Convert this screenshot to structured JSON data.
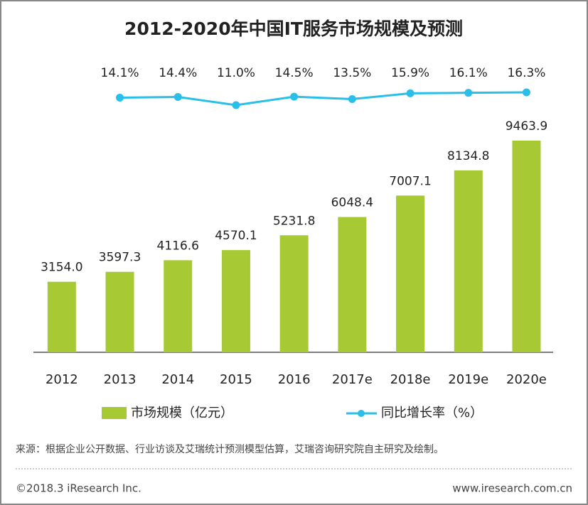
{
  "chart_data": {
    "type": "bar_line",
    "title": "2012-2020年中国IT服务市场规模及预测",
    "categories": [
      "2012",
      "2013",
      "2014",
      "2015",
      "2016",
      "2017e",
      "2018e",
      "2019e",
      "2020e"
    ],
    "series": [
      {
        "name": "市场规模（亿元）",
        "type": "bar",
        "color": "#a6c934",
        "values": [
          3154.0,
          3597.3,
          4116.6,
          4570.1,
          5231.8,
          6048.4,
          7007.1,
          8134.8,
          9463.9
        ],
        "value_labels": [
          "3154.0",
          "3597.3",
          "4116.6",
          "4570.1",
          "5231.8",
          "6048.4",
          "7007.1",
          "8134.8",
          "9463.9"
        ]
      },
      {
        "name": "同比增长率（%）",
        "type": "line",
        "color": "#29bfe9",
        "values": [
          null,
          14.1,
          14.4,
          11.0,
          14.5,
          13.5,
          15.9,
          16.1,
          16.3
        ],
        "value_labels": [
          null,
          "14.1%",
          "14.4%",
          "11.0%",
          "14.5%",
          "13.5%",
          "15.9%",
          "16.1%",
          "16.3%"
        ]
      }
    ]
  },
  "source": "来源：根据企业公开数据、行业访谈及艾瑞统计预测模型估算，艾瑞咨询研究院自主研究及绘制。",
  "copyright": "©2018.3 iResearch Inc.",
  "website": "www.iresearch.com.cn"
}
